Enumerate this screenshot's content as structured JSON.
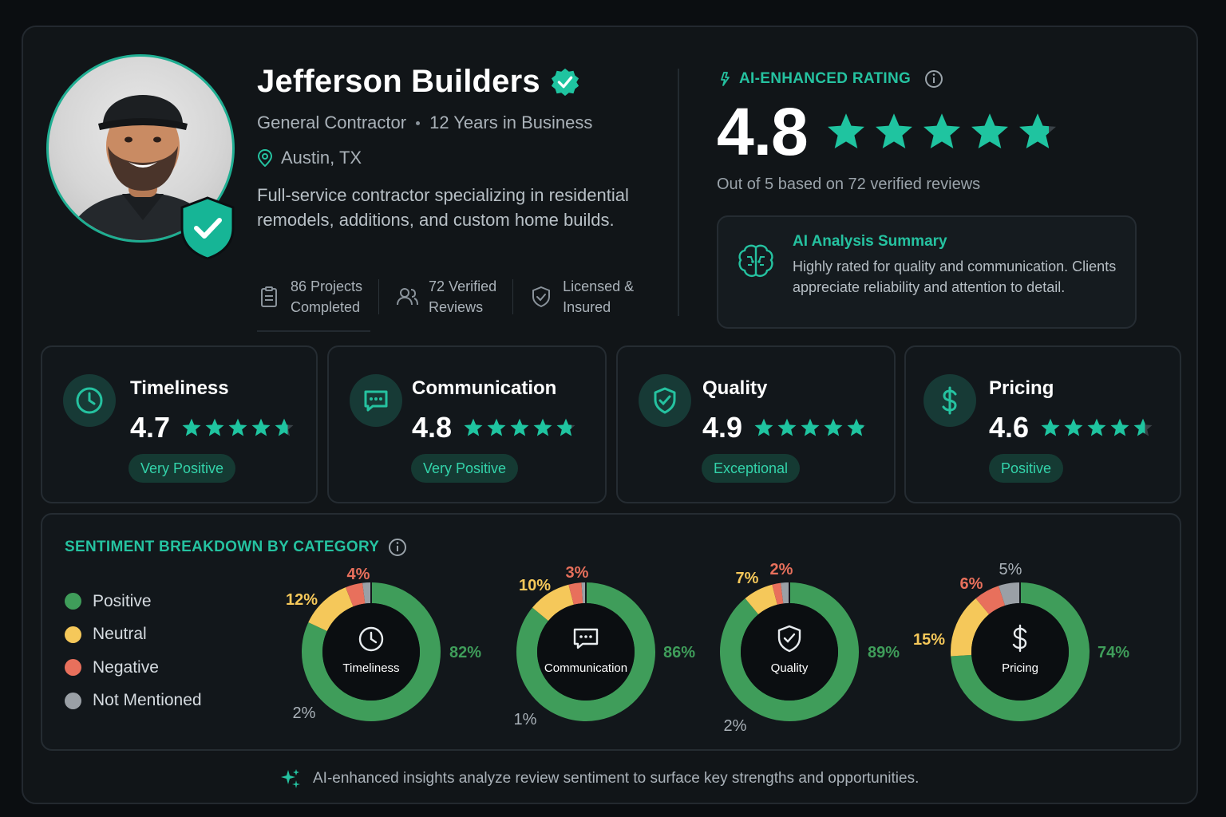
{
  "profile": {
    "name": "Jefferson Builders",
    "category": "General Contractor",
    "years": "12 Years in Business",
    "location": "Austin, TX",
    "description": "Full-service contractor specializing in residential remodels, additions, and custom home builds.",
    "stats": [
      {
        "line1": "86 Projects",
        "line2": "Completed",
        "icon": "clipboard-icon"
      },
      {
        "line1": "72 Verified",
        "line2": "Reviews",
        "icon": "users-icon"
      },
      {
        "line1": "Licensed &",
        "line2": "Insured",
        "icon": "shield-check-icon"
      }
    ]
  },
  "rating": {
    "label": "AI-ENHANCED RATING",
    "value": "4.8",
    "stars": 4.8,
    "subtitle": "Out of 5 based on 72 verified reviews"
  },
  "ai_summary": {
    "title": "AI Analysis Summary",
    "text": "Highly rated for quality and communication. Clients appreciate reliability and attention to detail."
  },
  "categories": [
    {
      "name": "Timeliness",
      "score": "4.7",
      "stars": 4.7,
      "badge": "Very Positive",
      "icon": "clock-icon"
    },
    {
      "name": "Communication",
      "score": "4.8",
      "stars": 4.8,
      "badge": "Very Positive",
      "icon": "chat-icon"
    },
    {
      "name": "Quality",
      "score": "4.9",
      "stars": 4.9,
      "badge": "Exceptional",
      "icon": "shield-check-icon"
    },
    {
      "name": "Pricing",
      "score": "4.6",
      "stars": 4.6,
      "badge": "Positive",
      "icon": "dollar-icon"
    }
  ],
  "sentiment": {
    "title": "SENTIMENT BREAKDOWN BY CATEGORY",
    "legend": [
      {
        "label": "Positive",
        "color": "#3f9d5a"
      },
      {
        "label": "Neutral",
        "color": "#f5c85a"
      },
      {
        "label": "Negative",
        "color": "#e8705c"
      },
      {
        "label": "Not Mentioned",
        "color": "#9aa0a6"
      }
    ]
  },
  "chart_data": {
    "type": "pie",
    "categories": [
      "Positive",
      "Neutral",
      "Negative",
      "Not Mentioned"
    ],
    "series": [
      {
        "name": "Timeliness",
        "values": [
          82,
          12,
          4,
          2
        ],
        "labels": [
          "82%",
          "12%",
          "4%",
          "2%"
        ]
      },
      {
        "name": "Communication",
        "values": [
          86,
          10,
          3,
          1
        ],
        "labels": [
          "86%",
          "10%",
          "3%",
          "1%"
        ]
      },
      {
        "name": "Quality",
        "values": [
          89,
          7,
          2,
          2
        ],
        "labels": [
          "89%",
          "7%",
          "2%",
          "2%"
        ]
      },
      {
        "name": "Pricing",
        "values": [
          74,
          15,
          6,
          5
        ],
        "labels": [
          "74%",
          "15%",
          "6%",
          "5%"
        ]
      }
    ]
  },
  "footer": {
    "text": "AI-enhanced insights analyze review sentiment to surface key strengths and opportunities."
  },
  "colors": {
    "accent": "#25c2a0",
    "star": "#1fc4a0",
    "star_empty": "#3a4248"
  }
}
